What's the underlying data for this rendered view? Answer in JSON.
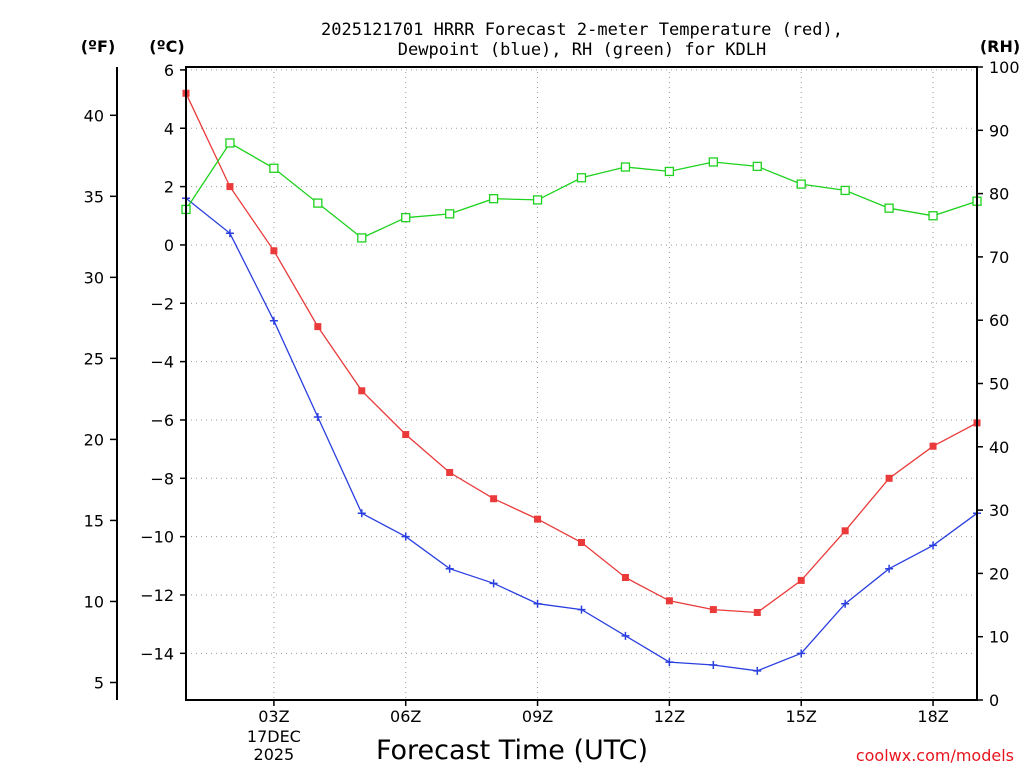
{
  "chart_data": {
    "type": "line",
    "title": [
      "2025121701 HRRR Forecast 2-meter Temperature (red),",
      "Dewpoint (blue), RH (green) for KDLH"
    ],
    "xlabel": "Forecast Time (UTC)",
    "credit": "coolwx.com/models",
    "units": {
      "fahrenheit": "(ºF)",
      "celsius": "(ºC)",
      "rh": "(RH)"
    },
    "x": [
      1,
      2,
      3,
      4,
      5,
      6,
      7,
      8,
      9,
      10,
      11,
      12,
      13,
      14,
      15,
      16,
      17,
      18,
      19
    ],
    "xlim": [
      1,
      19
    ],
    "x_ticks": [
      {
        "x": 3,
        "label": "03Z",
        "sub": [
          "17DEC",
          "2025"
        ]
      },
      {
        "x": 6,
        "label": "06Z"
      },
      {
        "x": 9,
        "label": "09Z"
      },
      {
        "x": 12,
        "label": "12Z"
      },
      {
        "x": 15,
        "label": "15Z"
      },
      {
        "x": 18,
        "label": "18Z"
      }
    ],
    "c_axis": {
      "ylim": [
        -15.6,
        6.1
      ],
      "ticks": [
        6,
        4,
        2,
        0,
        -2,
        -4,
        -6,
        -8,
        -10,
        -12,
        -14
      ],
      "labels": [
        "6",
        "4",
        "2",
        "0",
        "−2",
        "−4",
        "−6",
        "−8",
        "−10",
        "−12",
        "−14"
      ]
    },
    "f_axis": {
      "ticks": [
        40,
        35,
        30,
        25,
        20,
        15,
        10,
        5
      ],
      "labels": [
        "40",
        "35",
        "30",
        "25",
        "20",
        "15",
        "10",
        "5"
      ]
    },
    "rh_axis": {
      "ylim": [
        0,
        100
      ],
      "ticks": [
        0,
        10,
        20,
        30,
        40,
        50,
        60,
        70,
        80,
        90,
        100
      ],
      "labels": [
        "0",
        "10",
        "20",
        "30",
        "40",
        "50",
        "60",
        "70",
        "80",
        "90",
        "100"
      ]
    },
    "series": [
      {
        "name": "Temperature",
        "axis": "c",
        "color": "#ea3a3a",
        "marker": "square-filled",
        "values": [
          5.2,
          2.0,
          -0.2,
          -2.8,
          -5.0,
          -6.5,
          -7.8,
          -8.7,
          -9.4,
          -10.2,
          -11.4,
          -12.2,
          -12.5,
          -12.6,
          -11.5,
          -9.8,
          -8.0,
          -6.9,
          -6.1
        ]
      },
      {
        "name": "Dewpoint",
        "axis": "c",
        "color": "#2a3fe0",
        "marker": "plus",
        "values": [
          1.6,
          0.4,
          -2.6,
          -5.9,
          -9.2,
          -10.0,
          -11.1,
          -11.6,
          -12.3,
          -12.5,
          -13.4,
          -14.3,
          -14.4,
          -14.6,
          -14.0,
          -12.3,
          -11.1,
          -10.3,
          -9.2
        ]
      },
      {
        "name": "RH",
        "axis": "rh",
        "color": "#1ed21e",
        "marker": "square-open",
        "values": [
          77.5,
          88,
          84,
          78.5,
          73,
          76.2,
          76.8,
          79.2,
          79.0,
          82.5,
          84.2,
          83.5,
          85,
          84.3,
          81.5,
          80.5,
          77.7,
          76.5,
          78.8
        ]
      }
    ]
  }
}
